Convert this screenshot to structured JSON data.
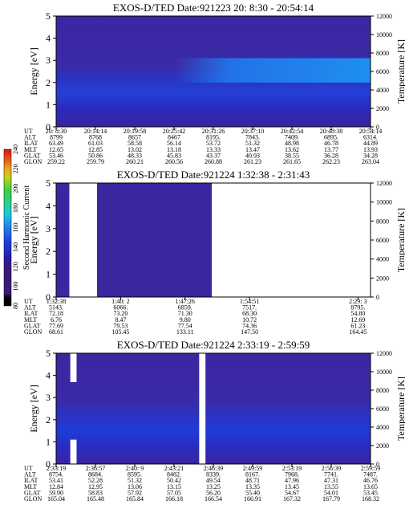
{
  "chart_data": [
    {
      "type": "heatmap",
      "title": "EXOS-D/TED   Date:921223  20: 8:30 - 20:54:14",
      "ylabel": "Energy [eV]",
      "y2label": "Temperature [K]",
      "ylim": [
        0,
        5
      ],
      "y_ticks": [
        "0",
        "1",
        "2",
        "3",
        "4",
        "5"
      ],
      "y2lim": [
        0,
        12000
      ],
      "y2_ticks": [
        "0",
        "2000",
        "4000",
        "6000",
        "8000",
        "10000",
        "12000"
      ],
      "table_labels": [
        "UT",
        "ALT",
        "ILAT",
        "MLT",
        "GLAT",
        "GLON"
      ],
      "table": [
        [
          "20: 8:30",
          "8799",
          "63.49",
          "12.65",
          "53.46",
          "259.22"
        ],
        [
          "20:14:14",
          "8768",
          "61.03",
          "12.85",
          "50.86",
          "259.79"
        ],
        [
          "20:19:58",
          "8657",
          "58.58",
          "13.02",
          "48.33",
          "260.21"
        ],
        [
          "20:25:42",
          "8467",
          "56.14",
          "13.18",
          "45.83",
          "260.56"
        ],
        [
          "20:31:26",
          "8195.",
          "53.72",
          "13.33",
          "43.37",
          "260.88"
        ],
        [
          "20:37:10",
          "7843.",
          "51.32",
          "13.47",
          "40.93",
          "261.23"
        ],
        [
          "20:42:54",
          "7409.",
          "48.98",
          "13.62",
          "38.55",
          "261.65"
        ],
        [
          "20:48:38",
          "6895.",
          "46.78",
          "13.77",
          "36.28",
          "262.23"
        ],
        [
          "20:54:14",
          "6314.",
          "44.89",
          "13.93",
          "34.28",
          "263.04"
        ]
      ],
      "gaps": []
    },
    {
      "type": "heatmap",
      "title": "EXOS-D/TED   Date:921224   1:32:38 - 2:31:43",
      "ylabel": "Energy [eV]",
      "y2label": "Temperature [K]",
      "ylim": [
        0,
        5
      ],
      "y_ticks": [
        "0",
        "1",
        "2",
        "3",
        "4",
        "5"
      ],
      "y2lim": [
        0,
        12000
      ],
      "y2_ticks": [
        "0",
        "2000",
        "4000",
        "6000",
        "8000",
        "10000",
        "12000"
      ],
      "table_labels": [
        "UT",
        "ALT",
        "ILAT",
        "MLT",
        "GLAT",
        "GLON"
      ],
      "table": [
        [
          "1:32:38",
          "5143.",
          "72.18",
          "6.76",
          "77.69",
          "68.61"
        ],
        [
          "1:40: 2",
          "6066.",
          "73.20",
          "8.47",
          "79.53",
          "105.45"
        ],
        [
          "1:47:26",
          "6859.",
          "71.30",
          "9.80",
          "77.54",
          "133.11"
        ],
        [
          "1:54:51",
          "7517.",
          "68.30",
          "10.72",
          "74.36",
          "147.50"
        ],
        [
          "2:29: 3",
          "8795.",
          "54.80",
          "12.69",
          "61.23",
          "164.45"
        ]
      ],
      "gaps": [
        [
          0.042,
          0.13
        ],
        [
          0.495,
          0.985
        ]
      ]
    },
    {
      "type": "heatmap",
      "title": "EXOS-D/TED   Date:921224  2:33:19 - 2:59:59",
      "ylabel": "Energy [eV]",
      "y2label": "Temperature [K]",
      "ylim": [
        0,
        5
      ],
      "y_ticks": [
        "0",
        "1",
        "2",
        "3",
        "4",
        "5"
      ],
      "y2lim": [
        0,
        12000
      ],
      "y2_ticks": [
        "0",
        "2000",
        "4000",
        "6000",
        "8000",
        "10000",
        "12000"
      ],
      "table_labels": [
        "UT",
        "ALT",
        "ILAT",
        "MLT",
        "GLAT",
        "GLON"
      ],
      "table": [
        [
          "2:33:19",
          "8754.",
          "53.41",
          "12.84",
          "59.90",
          "165.04"
        ],
        [
          "2:36:57",
          "8684.",
          "52.28",
          "12.95",
          "58.83",
          "165.48"
        ],
        [
          "2:40: 9",
          "8595.",
          "51.32",
          "13.06",
          "57.92",
          "165.84"
        ],
        [
          "2:43:21",
          "8482.",
          "50.42",
          "13.15",
          "57.05",
          "166.18"
        ],
        [
          "2:46:39",
          "8339.",
          "49.54",
          "13.25",
          "56.20",
          "166.54"
        ],
        [
          "2:49:59",
          "8167.",
          "48.71",
          "13.35",
          "55.40",
          "166.91"
        ],
        [
          "2:53:19",
          "7968.",
          "47.96",
          "13.45",
          "54.67",
          "167.32"
        ],
        [
          "2:56:39",
          "7741.",
          "47.31",
          "13.55",
          "54.01",
          "167.79"
        ],
        [
          "2:59:59",
          "7487.",
          "46.76",
          "13.65",
          "53.45",
          "168.32"
        ]
      ],
      "gaps": [
        [
          0.455,
          0.475
        ]
      ]
    }
  ],
  "colorbar": {
    "label": "Second Harmonic Current",
    "range": [
      80,
      240
    ],
    "ticks": [
      "80",
      "100",
      "120",
      "140",
      "160",
      "180",
      "200",
      "220",
      "240"
    ],
    "colors": [
      "#000000",
      "#3a1a78",
      "#2a1aa8",
      "#1e3cd8",
      "#1f7ff0",
      "#16c8e8",
      "#2ad08a",
      "#3cd23c",
      "#c8d21e",
      "#f0a01e",
      "#e8501e",
      "#d41414"
    ]
  }
}
